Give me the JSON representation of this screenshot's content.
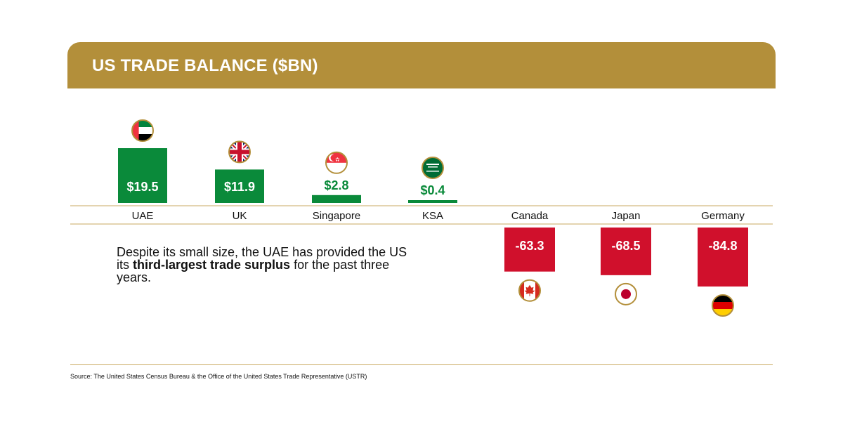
{
  "header": {
    "title": "US TRADE BALANCE ($BN)"
  },
  "colors": {
    "gold": "#b38f3a",
    "positive": "#0a8a3a",
    "negative": "#d0102c",
    "rule": "#c9a961"
  },
  "note": {
    "prefix": "Despite its small size, the UAE has provided the US its ",
    "bold": "third-largest trade surplus",
    "suffix": " for the past three years."
  },
  "source": "Source: The United States Census Bureau & the Office of the United States Trade Representative (USTR)",
  "chart_data": {
    "type": "bar",
    "title": "US TRADE BALANCE ($BN)",
    "categories": [
      "UAE",
      "UK",
      "Singapore",
      "KSA",
      "Canada",
      "Japan",
      "Germany"
    ],
    "values": [
      19.5,
      11.9,
      2.8,
      0.4,
      -63.3,
      -68.5,
      -84.8
    ],
    "data_labels": [
      "$19.5",
      "$11.9",
      "$2.8",
      "$0.4",
      "-63.3",
      "-68.5",
      "-84.8"
    ],
    "flags": [
      "uae-flag-icon",
      "uk-flag-icon",
      "singapore-flag-icon",
      "ksa-flag-icon",
      "canada-flag-icon",
      "japan-flag-icon",
      "germany-flag-icon"
    ],
    "grid": false,
    "legend": "none"
  }
}
